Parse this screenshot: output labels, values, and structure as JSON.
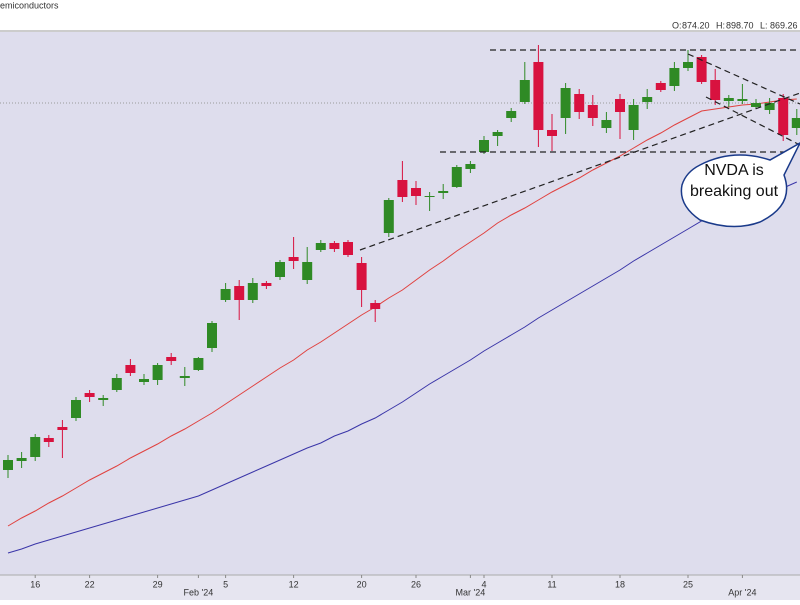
{
  "chart_data": {
    "type": "candlestick",
    "title": "emiconductors",
    "header": [
      {
        "label": "O:",
        "text": "874.20"
      },
      {
        "label": "H:",
        "text": "898.70"
      },
      {
        "label": "L:",
        "text": "869.26"
      }
    ],
    "annotation": "NVDA is breaking out",
    "categories": [
      null,
      null,
      "16",
      null,
      null,
      null,
      "22",
      null,
      null,
      null,
      null,
      "29",
      null,
      null,
      "Feb '24",
      null,
      "5",
      null,
      null,
      null,
      null,
      "12",
      null,
      null,
      null,
      null,
      "20",
      null,
      null,
      null,
      "26",
      null,
      null,
      null,
      "Mar '24",
      "4",
      null,
      null,
      null,
      null,
      "11",
      null,
      null,
      null,
      null,
      "18",
      null,
      null,
      null,
      null,
      "25",
      null,
      null,
      null,
      "Apr '24",
      null,
      null,
      null,
      null
    ],
    "open": [
      549,
      558,
      562,
      581,
      592,
      601,
      626,
      619,
      629,
      654,
      637,
      639,
      662,
      641,
      649,
      671,
      719,
      733,
      719,
      736,
      742,
      762,
      739,
      769,
      776,
      777,
      756,
      716,
      786,
      839,
      831,
      822,
      826,
      832,
      850,
      867,
      883,
      901,
      917,
      957,
      889,
      901,
      925,
      914,
      891,
      920,
      889,
      917,
      936,
      933,
      951,
      962,
      939,
      918,
      918,
      912,
      909,
      921,
      891
    ],
    "high": [
      564,
      567,
      585,
      584,
      599,
      622,
      629,
      624,
      645,
      660,
      645,
      656,
      666,
      652,
      662,
      698,
      736,
      739,
      741,
      738,
      759,
      782,
      772,
      779,
      778,
      779,
      762,
      719,
      821,
      858,
      838,
      827,
      835,
      854,
      858,
      883,
      889,
      911,
      957,
      974,
      905,
      936,
      930,
      924,
      907,
      925,
      920,
      930,
      938,
      957,
      969,
      964,
      950,
      924,
      935,
      920,
      921,
      925,
      910
    ],
    "low": [
      541,
      551,
      558,
      572,
      561,
      598,
      617,
      613,
      627,
      643,
      634,
      634,
      654,
      633,
      648,
      667,
      717,
      699,
      716,
      730,
      739,
      750,
      735,
      767,
      767,
      762,
      712,
      697,
      782,
      817,
      814,
      808,
      820,
      831,
      846,
      865,
      873,
      897,
      915,
      872,
      868,
      885,
      900,
      893,
      886,
      880,
      879,
      910,
      927,
      928,
      948,
      935,
      914,
      912,
      915,
      910,
      905,
      878,
      884
    ],
    "close": [
      559,
      561,
      582,
      577,
      589,
      619,
      622,
      621,
      641,
      646,
      640,
      654,
      658,
      643,
      661,
      696,
      730,
      719,
      736,
      733,
      757,
      758,
      757,
      776,
      770,
      764,
      729,
      710,
      819,
      822,
      823,
      823,
      828,
      852,
      855,
      879,
      887,
      908,
      939,
      889,
      883,
      931,
      907,
      901,
      899,
      907,
      914,
      922,
      929,
      951,
      957,
      937,
      919,
      921,
      920,
      916,
      916,
      884,
      901
    ],
    "up_color": "#2f8a25",
    "down_color": "#d8123f",
    "lines": [
      {
        "color": "#e0413f",
        "values": [
          493,
          501,
          508,
          516,
          523,
          531,
          539,
          546,
          553,
          561,
          568,
          575,
          583,
          590,
          598,
          606,
          615,
          624,
          633,
          642,
          651,
          659,
          669,
          677,
          686,
          695,
          704,
          712,
          721,
          729,
          739,
          749,
          758,
          768,
          777,
          786,
          796,
          804,
          811,
          819,
          827,
          834,
          841,
          849,
          856,
          863,
          871,
          879,
          886,
          894,
          901,
          908,
          910,
          912,
          914,
          915,
          917,
          919,
          920
        ]
      },
      {
        "color": "#3a35a8",
        "values": [
          466,
          470,
          475,
          479,
          483,
          487,
          491,
          495,
          499,
          503,
          507,
          511,
          515,
          519,
          523,
          529,
          535,
          541,
          547,
          553,
          559,
          565,
          571,
          576,
          583,
          588,
          595,
          601,
          609,
          617,
          626,
          635,
          643,
          651,
          659,
          668,
          676,
          684,
          692,
          701,
          709,
          717,
          725,
          733,
          741,
          749,
          758,
          766,
          774,
          782,
          790,
          798,
          804,
          809,
          815,
          820,
          826,
          831,
          837
        ]
      }
    ],
    "ylim": [
      444,
      987
    ]
  }
}
